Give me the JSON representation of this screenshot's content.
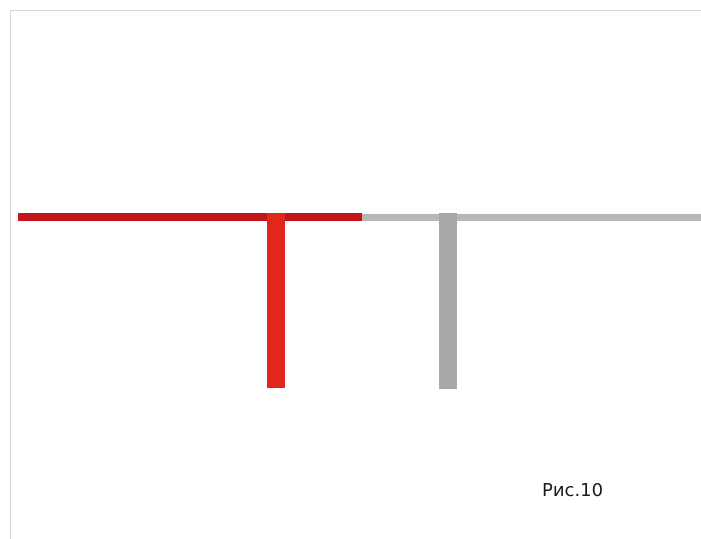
{
  "figure": {
    "caption": "Рис.10"
  },
  "colors": {
    "red_rail": "#c4141c",
    "red_post": "#e1261c",
    "gray_rail": "#b7b7b7",
    "gray_post": "#a8a8a8",
    "frame": "#d7d7d7",
    "background": "#ffffff"
  }
}
